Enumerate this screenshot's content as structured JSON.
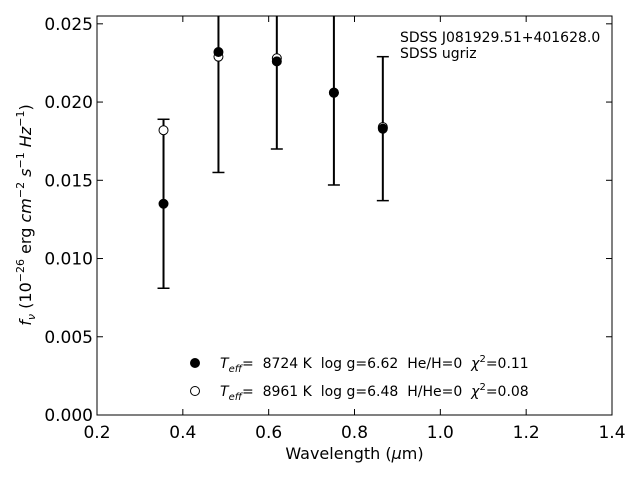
{
  "chart_data": {
    "type": "scatter",
    "xlabel": {
      "prefix": "Wavelength (",
      "unit_symbol": "μ",
      "unit_rest": "m)"
    },
    "ylabel": {
      "f": "f",
      "sub": "ν",
      "open": " (10",
      "exp1": "−26",
      "erg": " erg ",
      "cm": "cm",
      "exp2": "−2",
      "s": " s",
      "exp3": "−1",
      "hz": " Hz",
      "exp4": "−1",
      "close": ")"
    },
    "xlim": [
      0.2,
      1.4
    ],
    "ylim": [
      0.0,
      0.0255
    ],
    "xticks": [
      0.2,
      0.4,
      0.6,
      0.8,
      1.0,
      1.2,
      1.4
    ],
    "xtick_labels": [
      "0.2",
      "0.4",
      "0.6",
      "0.8",
      "1.0",
      "1.2",
      "1.4"
    ],
    "yticks": [
      0.0,
      0.005,
      0.01,
      0.015,
      0.02,
      0.025
    ],
    "ytick_labels": [
      "0.000",
      "0.005",
      "0.010",
      "0.015",
      "0.020",
      "0.025"
    ],
    "grid": false,
    "annotation_lines": [
      "SDSS J081929.51+401628.0",
      "SDSS ugriz"
    ],
    "observed": {
      "marker": "filled-circle",
      "color": "#000000",
      "points": [
        {
          "x": 0.355,
          "y": 0.0135,
          "err": 0.0054
        },
        {
          "x": 0.483,
          "y": 0.0232,
          "err": 0.0077
        },
        {
          "x": 0.619,
          "y": 0.0226,
          "err": 0.0056
        },
        {
          "x": 0.752,
          "y": 0.0206,
          "err": 0.0059
        },
        {
          "x": 0.866,
          "y": 0.0183,
          "err": 0.0046
        }
      ]
    },
    "series": [
      {
        "marker": "filled-circle",
        "color": "#000000",
        "legend": {
          "teff_symbol": "T",
          "teff_sub": "eff",
          "body": "=  8724 K  log g=6.62  He/H=0  ",
          "chi_symbol": "χ",
          "chi_sup": "2",
          "chi_value": "=0.11"
        },
        "points": [
          {
            "x": 0.355,
            "y": 0.0135
          },
          {
            "x": 0.483,
            "y": 0.0232
          },
          {
            "x": 0.619,
            "y": 0.0226
          },
          {
            "x": 0.752,
            "y": 0.0206
          },
          {
            "x": 0.866,
            "y": 0.0183
          }
        ]
      },
      {
        "marker": "open-circle",
        "color": "#000000",
        "legend": {
          "teff_symbol": "T",
          "teff_sub": "eff",
          "body": "=  8961 K  log g=6.48  H/He=0  ",
          "chi_symbol": "χ",
          "chi_sup": "2",
          "chi_value": "=0.08"
        },
        "points": [
          {
            "x": 0.355,
            "y": 0.0182
          },
          {
            "x": 0.483,
            "y": 0.0229
          },
          {
            "x": 0.619,
            "y": 0.0228
          },
          {
            "x": 0.752,
            "y": 0.0206
          },
          {
            "x": 0.866,
            "y": 0.0184
          }
        ]
      }
    ]
  }
}
